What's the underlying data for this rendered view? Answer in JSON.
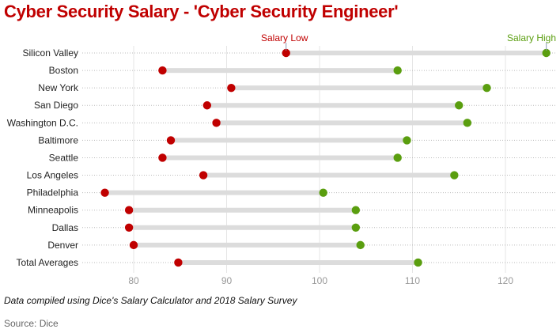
{
  "chart_data": {
    "type": "dumbbell",
    "title": "Cyber Security Salary - 'Cyber Security Engineer'",
    "xlabel": "",
    "ylabel": "",
    "xlim": [
      74,
      126
    ],
    "x_ticks": [
      80,
      90,
      100,
      110,
      120
    ],
    "grid": true,
    "categories": [
      "Silicon Valley",
      "Boston",
      "New York",
      "San Diego",
      "Washington D.C.",
      "Baltimore",
      "Seattle",
      "Los Angeles",
      "Philadelphia",
      "Minneapolis",
      "Dallas",
      "Denver",
      "Total Averages"
    ],
    "series": [
      {
        "name": "Salary Low",
        "color": "#c00000",
        "values": [
          96.4,
          83.1,
          90.5,
          87.9,
          88.9,
          84.0,
          83.1,
          87.5,
          76.9,
          79.5,
          79.5,
          80.0,
          84.8
        ]
      },
      {
        "name": "Salary High",
        "color": "#5a9e0f",
        "values": [
          124.4,
          108.4,
          118.0,
          115.0,
          115.9,
          109.4,
          108.4,
          114.5,
          100.4,
          103.9,
          103.9,
          104.4,
          110.6
        ]
      }
    ],
    "legend_placement": "annotations on first row"
  },
  "footer": {
    "note": "Data compiled using Dice's Salary Calculator and 2018 Salary Survey",
    "source": "Source: Dice"
  }
}
